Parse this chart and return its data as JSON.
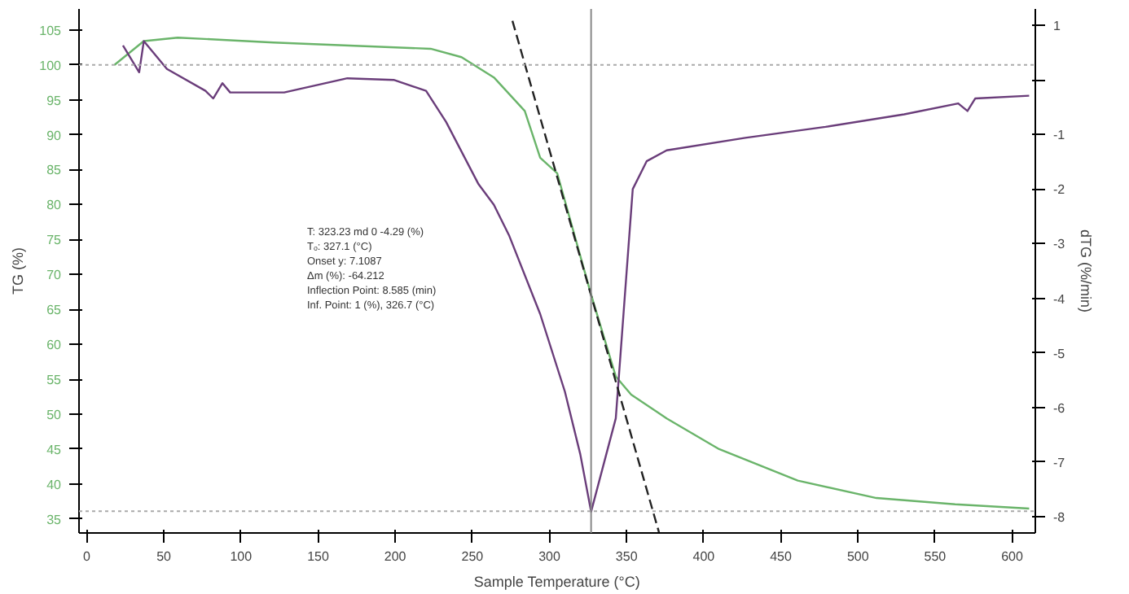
{
  "chart_data": {
    "type": "line",
    "xlabel": "Sample Temperature (°C)",
    "ylabel": "TG (%)",
    "y2label": "dTG (%/min)",
    "xlim": [
      -5,
      615
    ],
    "xticks": [
      0,
      50,
      100,
      150,
      200,
      250,
      300,
      350,
      400,
      450,
      500,
      550,
      600
    ],
    "ylim": [
      33,
      108
    ],
    "yticks": [
      35,
      40,
      45,
      50,
      55,
      60,
      65,
      70,
      75,
      80,
      85,
      90,
      95,
      100,
      105
    ],
    "y2lim": [
      -8.3,
      1.3
    ],
    "y2ticks": [
      {
        "value": 1,
        "label": "1"
      },
      {
        "value": 0,
        "label": null
      },
      -1,
      -2,
      -3,
      -4,
      -5,
      -6,
      -7,
      -8
    ],
    "grid": false,
    "marker": "none",
    "series": [
      {
        "color": "#6ab46a",
        "x": [
          18,
          37,
          59,
          121,
          223,
          243,
          264,
          284,
          294,
          305,
          327,
          343,
          353,
          376,
          410,
          461,
          512,
          563,
          611
        ],
        "values": [
          100,
          103.4,
          103.9,
          103.2,
          102.3,
          101.1,
          98.2,
          93.4,
          86.7,
          84.5,
          67.1,
          55.4,
          52.8,
          49.4,
          45.0,
          40.5,
          38.0,
          37.1,
          36.5
        ]
      },
      {
        "color": "#6a3d7a",
        "axis": "y2",
        "x": [
          23.5,
          34,
          37,
          52,
          77,
          82,
          88,
          93,
          128,
          169,
          199,
          220,
          233,
          254,
          264,
          274,
          294,
          310,
          320,
          327,
          343,
          348,
          354,
          363,
          376,
          427,
          479,
          530,
          565,
          571,
          576,
          611
        ],
        "values": [
          0.63,
          0.14,
          0.71,
          0.2,
          -0.2,
          -0.34,
          -0.06,
          -0.23,
          -0.23,
          0.03,
          0,
          -0.2,
          -0.77,
          -1.91,
          -2.29,
          -2.86,
          -4.29,
          -5.71,
          -6.86,
          -7.91,
          -6.2,
          -4.29,
          -2.0,
          -1.49,
          -1.29,
          -1.06,
          -0.86,
          -0.63,
          -0.43,
          -0.57,
          -0.34,
          -0.29
        ]
      },
      {
        "color": "#222222",
        "line_style": "dashed",
        "x": [
          276,
          371
        ],
        "values": [
          106.3,
          33.1
        ]
      }
    ],
    "ref_lines": [
      {
        "axis": "y",
        "value": 100,
        "color": "#aaaaaa",
        "line_style": "dotted"
      },
      {
        "axis": "y2",
        "value": -7.9,
        "color": "#aaaaaa",
        "line_style": "dotted"
      },
      {
        "axis": "x",
        "value": 327,
        "color": "#888888",
        "line_style": "solid"
      }
    ],
    "annotations": [
      "T: 323.23 md 0 -4.29 (%)",
      "Tₒ: 327.1 (°C)",
      "Onset y: 7.1087",
      "Δm (%): -64.212",
      "Inflection Point: 8.585 (min)",
      "Inf. Point: 1 (%), 326.7 (°C)"
    ]
  }
}
